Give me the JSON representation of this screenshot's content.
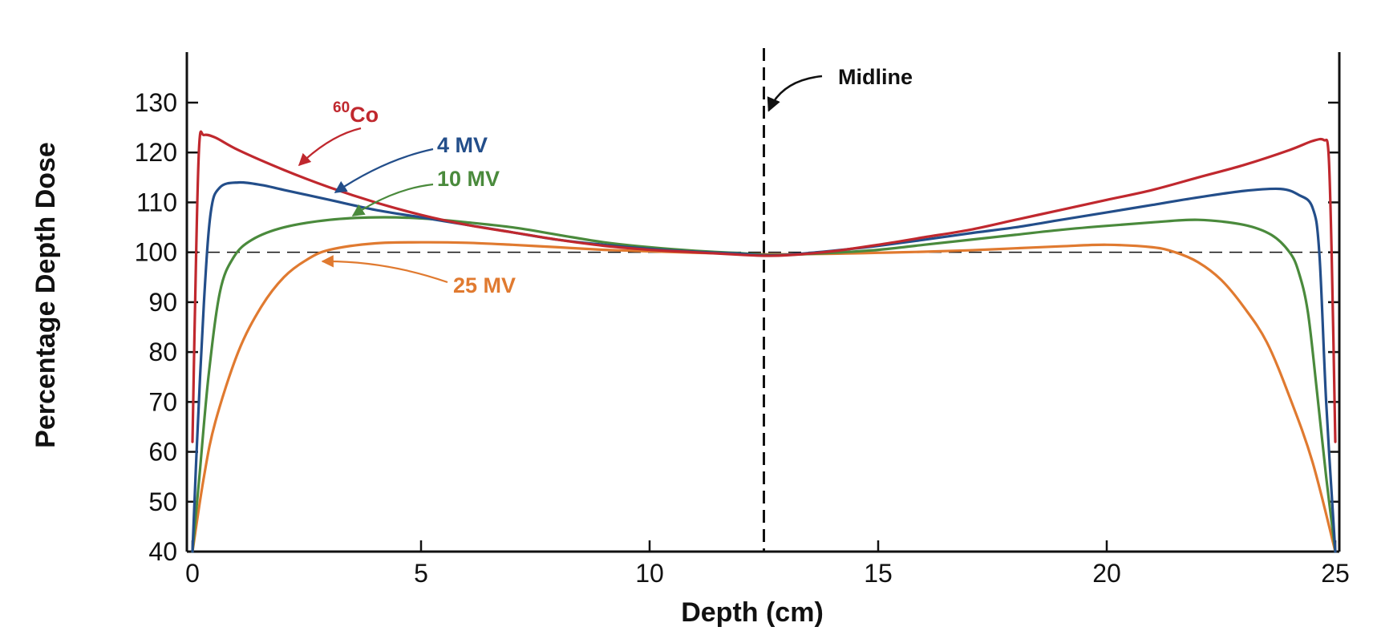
{
  "chart_data": {
    "type": "line",
    "title": "",
    "xlabel": "Depth (cm)",
    "ylabel": "Percentage Depth Dose",
    "xlim": [
      0,
      25
    ],
    "ylim": [
      40,
      140
    ],
    "xticks": [
      0,
      5,
      10,
      15,
      20,
      25
    ],
    "yticks": [
      40,
      50,
      60,
      70,
      80,
      90,
      100,
      110,
      120,
      130
    ],
    "reference_line_y": 100,
    "midline": {
      "x": 12.5,
      "label": "Midline"
    },
    "series": [
      {
        "name": "60Co",
        "name_sup": "60",
        "name_main": "Co",
        "color": "#c0282e",
        "x": [
          0,
          0.08,
          0.15,
          0.25,
          0.5,
          1,
          2,
          3,
          4,
          5,
          6,
          7,
          8,
          9,
          10,
          11,
          12,
          12.5,
          13,
          14,
          15,
          16,
          17,
          18,
          19,
          20,
          21,
          22,
          23,
          24,
          24.5,
          24.75,
          24.85,
          24.92,
          25
        ],
        "y": [
          62,
          100,
          122,
          123.5,
          123,
          120.5,
          116.5,
          113,
          110,
          107.5,
          105.5,
          104,
          102.5,
          101.3,
          100.5,
          100,
          99.5,
          99.3,
          99.4,
          100.2,
          101.5,
          103,
          104.5,
          106.5,
          108.5,
          110.5,
          112.5,
          115,
          117.5,
          120.5,
          122.3,
          122.5,
          120,
          100,
          62
        ]
      },
      {
        "name": "4 MV",
        "color": "#234e8a",
        "x": [
          0,
          0.1,
          0.25,
          0.4,
          0.6,
          1,
          1.5,
          2,
          3,
          4,
          5,
          6,
          7,
          8,
          9,
          10,
          11,
          12,
          12.5,
          13,
          14,
          15,
          16,
          17,
          18,
          19,
          20,
          21,
          22,
          23,
          23.8,
          24.2,
          24.5,
          24.65,
          24.8,
          25
        ],
        "y": [
          40,
          62,
          90,
          108,
          113,
          114,
          113.5,
          112.5,
          110.5,
          108.5,
          107,
          105.5,
          104,
          102.5,
          101.5,
          100.7,
          100.1,
          99.7,
          99.4,
          99.5,
          100.3,
          101.3,
          102.5,
          103.8,
          105,
          106.5,
          108,
          109.5,
          111,
          112.3,
          112.7,
          111.5,
          109,
          100,
          70,
          40
        ]
      },
      {
        "name": "10 MV",
        "color": "#4a8a3c",
        "x": [
          0,
          0.15,
          0.35,
          0.6,
          0.9,
          1.3,
          2,
          3,
          4,
          5,
          6,
          7,
          8,
          9,
          10,
          11,
          12,
          12.5,
          13,
          14,
          15,
          16,
          17,
          18,
          19,
          20,
          21,
          22,
          23,
          23.6,
          24,
          24.2,
          24.4,
          24.6,
          24.8,
          25
        ],
        "y": [
          40,
          55,
          75,
          92,
          99,
          102.5,
          105,
          106.5,
          107,
          106.8,
          106,
          105,
          103.5,
          102,
          101,
          100.3,
          99.8,
          99.5,
          99.5,
          99.9,
          100.5,
          101.5,
          102.5,
          103.5,
          104.5,
          105.3,
          106,
          106.5,
          105.5,
          103.5,
          100,
          96,
          88,
          72,
          55,
          40
        ]
      },
      {
        "name": "25 MV",
        "color": "#e07a30",
        "x": [
          0,
          0.25,
          0.5,
          1,
          1.5,
          2,
          2.5,
          3,
          4,
          5,
          6,
          7,
          8,
          9,
          10,
          11,
          12,
          12.5,
          13,
          14,
          15,
          16,
          17,
          18,
          19,
          20,
          21,
          21.5,
          22,
          22.5,
          23,
          23.5,
          24,
          24.5,
          25
        ],
        "y": [
          40,
          55,
          66,
          80,
          89,
          95,
          98.5,
          100.5,
          101.8,
          102,
          101.9,
          101.5,
          101,
          100.5,
          100.2,
          99.9,
          99.7,
          99.6,
          99.6,
          99.7,
          99.9,
          100.1,
          100.4,
          100.8,
          101.2,
          101.5,
          101,
          100,
          98,
          94.5,
          89,
          82,
          71,
          58,
          40
        ]
      }
    ]
  }
}
